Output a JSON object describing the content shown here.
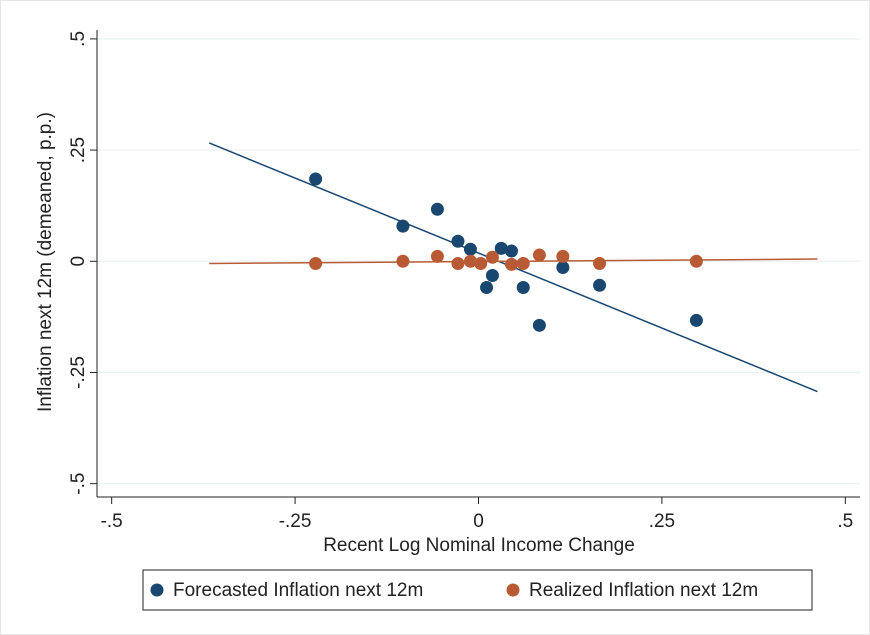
{
  "chart_data": {
    "type": "scatter",
    "x_label": "Recent Log Nominal Income Change",
    "y_label": "Inflation next 12m (demeaned, p.p.)",
    "xlim": [
      -0.52,
      0.52
    ],
    "ylim": [
      -0.53,
      0.52
    ],
    "xticks": [
      {
        "value": -0.5,
        "label": "-.5"
      },
      {
        "value": -0.25,
        "label": "-.25"
      },
      0,
      {
        "value": 0.25,
        "label": ".25"
      },
      {
        "value": 0.5,
        "label": ".5"
      }
    ],
    "yticks": [
      {
        "value": -0.5,
        "label": "-.5"
      },
      {
        "value": -0.25,
        "label": "-.25"
      },
      0,
      {
        "value": 0.25,
        "label": ".25"
      },
      {
        "value": 0.5,
        "label": ".5"
      }
    ],
    "grid": true,
    "legend": "bottom",
    "series": [
      {
        "name": "Forecasted Inflation next 12m",
        "color": "#1a476f",
        "x": [
          -0.222,
          -0.103,
          -0.056,
          -0.028,
          -0.011,
          0.011,
          0.019,
          0.031,
          0.045,
          0.061,
          0.083,
          0.115,
          0.165,
          0.297
        ],
        "values": [
          0.185,
          0.079,
          0.117,
          0.045,
          0.027,
          -0.059,
          -0.032,
          0.029,
          0.023,
          -0.059,
          -0.144,
          -0.014,
          -0.054,
          -0.133
        ],
        "fit_x": [
          -0.367,
          0.462
        ],
        "fit_y": [
          0.266,
          -0.293
        ]
      },
      {
        "name": "Realized Inflation next 12m",
        "color": "#b85b35",
        "x": [
          -0.222,
          -0.103,
          -0.056,
          -0.028,
          -0.011,
          0.003,
          0.019,
          0.045,
          0.061,
          0.083,
          0.115,
          0.165,
          0.297
        ],
        "values": [
          -0.005,
          0,
          0.011,
          -0.005,
          0,
          -0.005,
          0.009,
          -0.007,
          -0.005,
          0.014,
          0.011,
          -0.005,
          0
        ],
        "fit_x": [
          -0.367,
          0.462
        ],
        "fit_y": [
          -0.005,
          0.005
        ]
      }
    ]
  }
}
